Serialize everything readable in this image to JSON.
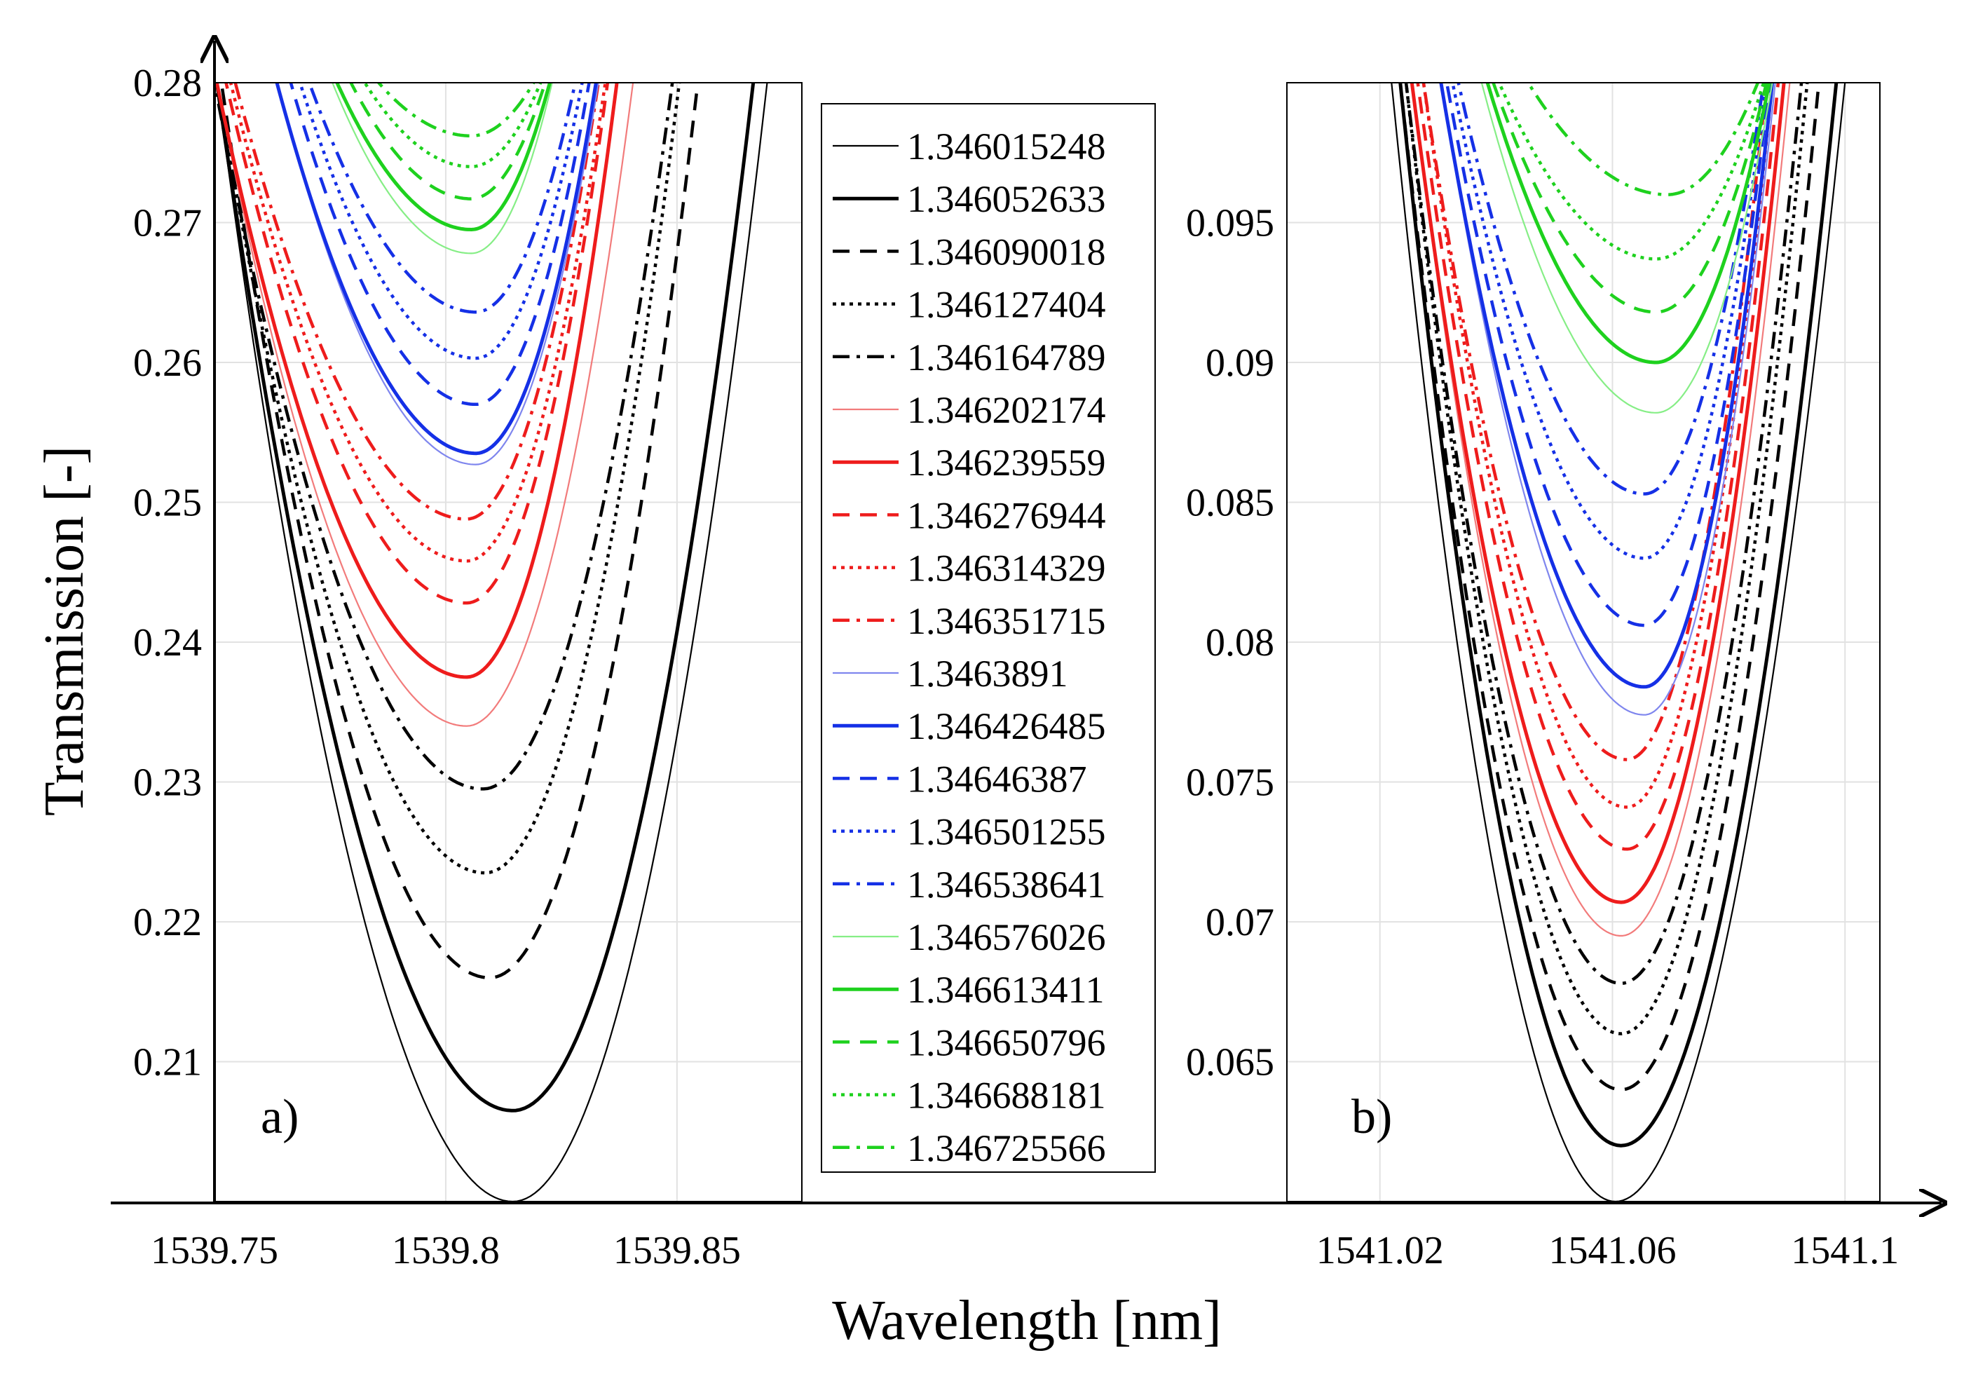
{
  "figure": {
    "ylabel": "Transmission [-]",
    "xlabel": "Wavelength [nm]"
  },
  "legend": {
    "entries": [
      {
        "label": "1.346015248",
        "color": "#000000",
        "style": "thin"
      },
      {
        "label": "1.346052633",
        "color": "#000000",
        "style": "solid"
      },
      {
        "label": "1.346090018",
        "color": "#000000",
        "style": "dashed"
      },
      {
        "label": "1.346127404",
        "color": "#000000",
        "style": "dotted"
      },
      {
        "label": "1.346164789",
        "color": "#000000",
        "style": "dashdot"
      },
      {
        "label": "1.346202174",
        "color": "#f27b7b",
        "style": "thin"
      },
      {
        "label": "1.346239559",
        "color": "#ee1c1c",
        "style": "solid"
      },
      {
        "label": "1.346276944",
        "color": "#ee1c1c",
        "style": "dashed"
      },
      {
        "label": "1.346314329",
        "color": "#ee1c1c",
        "style": "dotted"
      },
      {
        "label": "1.346351715",
        "color": "#ee1c1c",
        "style": "dashdot"
      },
      {
        "label": "1.3463891",
        "color": "#7f86ee",
        "style": "thin"
      },
      {
        "label": "1.346426485",
        "color": "#1530e6",
        "style": "solid"
      },
      {
        "label": "1.34646387",
        "color": "#1530e6",
        "style": "dashed"
      },
      {
        "label": "1.346501255",
        "color": "#1530e6",
        "style": "dotted"
      },
      {
        "label": "1.346538641",
        "color": "#1530e6",
        "style": "dashdot"
      },
      {
        "label": "1.346576026",
        "color": "#86ee86",
        "style": "thin"
      },
      {
        "label": "1.346613411",
        "color": "#1ed11e",
        "style": "solid"
      },
      {
        "label": "1.346650796",
        "color": "#1ed11e",
        "style": "dashed"
      },
      {
        "label": "1.346688181",
        "color": "#1ed11e",
        "style": "dotted"
      },
      {
        "label": "1.346725566",
        "color": "#1ed11e",
        "style": "dashdot"
      }
    ]
  },
  "chart_data": [
    {
      "type": "line",
      "panel_label": "a)",
      "xlim": [
        1539.75,
        1539.877
      ],
      "ylim": [
        0.2,
        0.28
      ],
      "xticks": [
        1539.75,
        1539.8,
        1539.85
      ],
      "xtick_labels": [
        "1539.75",
        "1539.8",
        "1539.85"
      ],
      "yticks": [
        0.21,
        0.22,
        0.23,
        0.24,
        0.25,
        0.26,
        0.27,
        0.28
      ],
      "ytick_labels": [
        "0.21",
        "0.22",
        "0.23",
        "0.24",
        "0.25",
        "0.26",
        "0.27",
        "0.28"
      ],
      "xlabel": "Wavelength [nm]",
      "ylabel": "Transmission [-]",
      "series": [
        {
          "name": "1.346015248",
          "x_min": 1539.8145,
          "y_min": 0.2,
          "left_width": 0.064,
          "right_width": 0.055
        },
        {
          "name": "1.346052633",
          "x_min": 1539.8145,
          "y_min": 0.2065,
          "left_width": 0.064,
          "right_width": 0.052
        },
        {
          "name": "1.346090018",
          "x_min": 1539.8095,
          "y_min": 0.216,
          "left_width": 0.058,
          "right_width": 0.045
        },
        {
          "name": "1.346127404",
          "x_min": 1539.8085,
          "y_min": 0.2235,
          "left_width": 0.058,
          "right_width": 0.042
        },
        {
          "name": "1.346164789",
          "x_min": 1539.808,
          "y_min": 0.2295,
          "left_width": 0.058,
          "right_width": 0.041
        },
        {
          "name": "1.346202174",
          "x_min": 1539.8045,
          "y_min": 0.234,
          "left_width": 0.054,
          "right_width": 0.036
        },
        {
          "name": "1.346239559",
          "x_min": 1539.8045,
          "y_min": 0.2375,
          "left_width": 0.054,
          "right_width": 0.0325
        },
        {
          "name": "1.346276944",
          "x_min": 1539.8045,
          "y_min": 0.2428,
          "left_width": 0.052,
          "right_width": 0.0305
        },
        {
          "name": "1.346314329",
          "x_min": 1539.8045,
          "y_min": 0.2458,
          "left_width": 0.051,
          "right_width": 0.03
        },
        {
          "name": "1.346351715",
          "x_min": 1539.8045,
          "y_min": 0.2488,
          "left_width": 0.05,
          "right_width": 0.0285
        },
        {
          "name": "1.3463891",
          "x_min": 1539.8065,
          "y_min": 0.2527,
          "left_width": 0.043,
          "right_width": 0.0265
        },
        {
          "name": "1.346426485",
          "x_min": 1539.8065,
          "y_min": 0.2535,
          "left_width": 0.043,
          "right_width": 0.026
        },
        {
          "name": "1.34646387",
          "x_min": 1539.8065,
          "y_min": 0.257,
          "left_width": 0.04,
          "right_width": 0.0245
        },
        {
          "name": "1.346501255",
          "x_min": 1539.8065,
          "y_min": 0.2603,
          "left_width": 0.038,
          "right_width": 0.023
        },
        {
          "name": "1.346538641",
          "x_min": 1539.8065,
          "y_min": 0.2636,
          "left_width": 0.036,
          "right_width": 0.0215
        },
        {
          "name": "1.346576026",
          "x_min": 1539.8055,
          "y_min": 0.2678,
          "left_width": 0.03,
          "right_width": 0.0175
        },
        {
          "name": "1.346613411",
          "x_min": 1539.8055,
          "y_min": 0.2695,
          "left_width": 0.029,
          "right_width": 0.017
        },
        {
          "name": "1.346650796",
          "x_min": 1539.8055,
          "y_min": 0.2717,
          "left_width": 0.026,
          "right_width": 0.016
        },
        {
          "name": "1.346688181",
          "x_min": 1539.8055,
          "y_min": 0.274,
          "left_width": 0.023,
          "right_width": 0.015
        },
        {
          "name": "1.346725566",
          "x_min": 1539.8055,
          "y_min": 0.2762,
          "left_width": 0.02,
          "right_width": 0.0135
        }
      ]
    },
    {
      "type": "line",
      "panel_label": "b)",
      "xlim": [
        1541.004,
        1541.106
      ],
      "ylim": [
        0.06,
        0.1
      ],
      "xticks": [
        1541.02,
        1541.06,
        1541.1
      ],
      "xtick_labels": [
        "1541.02",
        "1541.06",
        "1541.1"
      ],
      "yticks": [
        0.065,
        0.07,
        0.075,
        0.08,
        0.085,
        0.09,
        0.095
      ],
      "ytick_labels": [
        "0.065",
        "0.07",
        "0.075",
        "0.08",
        "0.085",
        "0.09",
        "0.095"
      ],
      "xlabel": "Wavelength [nm]",
      "ylabel": "Transmission [-]",
      "series": [
        {
          "name": "1.346015248",
          "x_min": 1541.0605,
          "y_min": 0.06,
          "left_width": 0.0385,
          "right_width": 0.0395
        },
        {
          "name": "1.346052633",
          "x_min": 1541.0615,
          "y_min": 0.062,
          "left_width": 0.038,
          "right_width": 0.037
        },
        {
          "name": "1.346090018",
          "x_min": 1541.0615,
          "y_min": 0.064,
          "left_width": 0.038,
          "right_width": 0.034
        },
        {
          "name": "1.346127404",
          "x_min": 1541.0615,
          "y_min": 0.066,
          "left_width": 0.037,
          "right_width": 0.032
        },
        {
          "name": "1.346164789",
          "x_min": 1541.0615,
          "y_min": 0.0678,
          "left_width": 0.037,
          "right_width": 0.031
        },
        {
          "name": "1.346202174",
          "x_min": 1541.0615,
          "y_min": 0.0695,
          "left_width": 0.036,
          "right_width": 0.029
        },
        {
          "name": "1.346239559",
          "x_min": 1541.0615,
          "y_min": 0.0707,
          "left_width": 0.036,
          "right_width": 0.028
        },
        {
          "name": "1.346276944",
          "x_min": 1541.0625,
          "y_min": 0.0726,
          "left_width": 0.036,
          "right_width": 0.026
        },
        {
          "name": "1.346314329",
          "x_min": 1541.0625,
          "y_min": 0.0741,
          "left_width": 0.035,
          "right_width": 0.025
        },
        {
          "name": "1.346351715",
          "x_min": 1541.0625,
          "y_min": 0.0758,
          "left_width": 0.035,
          "right_width": 0.024
        },
        {
          "name": "1.3463891",
          "x_min": 1541.0655,
          "y_min": 0.0774,
          "left_width": 0.035,
          "right_width": 0.0225
        },
        {
          "name": "1.346426485",
          "x_min": 1541.0655,
          "y_min": 0.0784,
          "left_width": 0.035,
          "right_width": 0.022
        },
        {
          "name": "1.34646387",
          "x_min": 1541.0655,
          "y_min": 0.0806,
          "left_width": 0.034,
          "right_width": 0.0215
        },
        {
          "name": "1.346501255",
          "x_min": 1541.0655,
          "y_min": 0.083,
          "left_width": 0.033,
          "right_width": 0.021
        },
        {
          "name": "1.346538641",
          "x_min": 1541.0655,
          "y_min": 0.0853,
          "left_width": 0.032,
          "right_width": 0.0205
        },
        {
          "name": "1.346576026",
          "x_min": 1541.0675,
          "y_min": 0.0882,
          "left_width": 0.03,
          "right_width": 0.02
        },
        {
          "name": "1.346613411",
          "x_min": 1541.0675,
          "y_min": 0.09,
          "left_width": 0.029,
          "right_width": 0.0195
        },
        {
          "name": "1.346650796",
          "x_min": 1541.0675,
          "y_min": 0.0918,
          "left_width": 0.028,
          "right_width": 0.019
        },
        {
          "name": "1.346688181",
          "x_min": 1541.0675,
          "y_min": 0.0937,
          "left_width": 0.027,
          "right_width": 0.0185
        },
        {
          "name": "1.346725566",
          "x_min": 1541.0695,
          "y_min": 0.096,
          "left_width": 0.024,
          "right_width": 0.0155
        }
      ]
    }
  ]
}
